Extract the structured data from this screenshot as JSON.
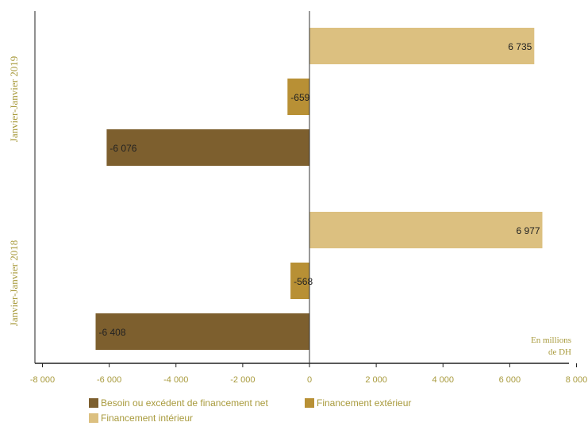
{
  "chart_data": {
    "type": "bar",
    "orientation": "horizontal",
    "groups": [
      "Janvier-Janvier 2019",
      "Janvier-Janvier 2018"
    ],
    "series": [
      {
        "name": "Financement intérieur",
        "values": [
          6735,
          6977
        ],
        "labels": [
          "6 735",
          "6 977"
        ]
      },
      {
        "name": "Financement extérieur",
        "values": [
          -659,
          -568
        ],
        "labels": [
          "-659",
          "-568"
        ]
      },
      {
        "name": "Besoin ou excédent de financement net",
        "values": [
          -6076,
          -6408
        ],
        "labels": [
          "-6 076",
          "-6 408"
        ]
      }
    ],
    "xlim": [
      -8000,
      8000
    ],
    "xticks": [
      -8000,
      -6000,
      -4000,
      -2000,
      0,
      2000,
      4000,
      6000,
      8000
    ],
    "xtick_labels": [
      "-8 000",
      "-6 000",
      "-4 000",
      "-2 000",
      "0",
      "2 000",
      "4 000",
      "6 000",
      "8 000"
    ],
    "unit_label": [
      "En millions",
      "de DH"
    ],
    "legend": [
      {
        "name": "Besoin ou excédent de financement net",
        "color": "#7d5f2e"
      },
      {
        "name": "Financement extérieur",
        "color": "#b89035"
      },
      {
        "name": "Financement intérieur",
        "color": "#dcc080"
      }
    ],
    "colors": {
      "Financement intérieur": "#dcc080",
      "Financement extérieur": "#b89035",
      "Besoin ou excédent de financement net": "#7d5f2e",
      "axis_text": "#a89a3c"
    }
  }
}
